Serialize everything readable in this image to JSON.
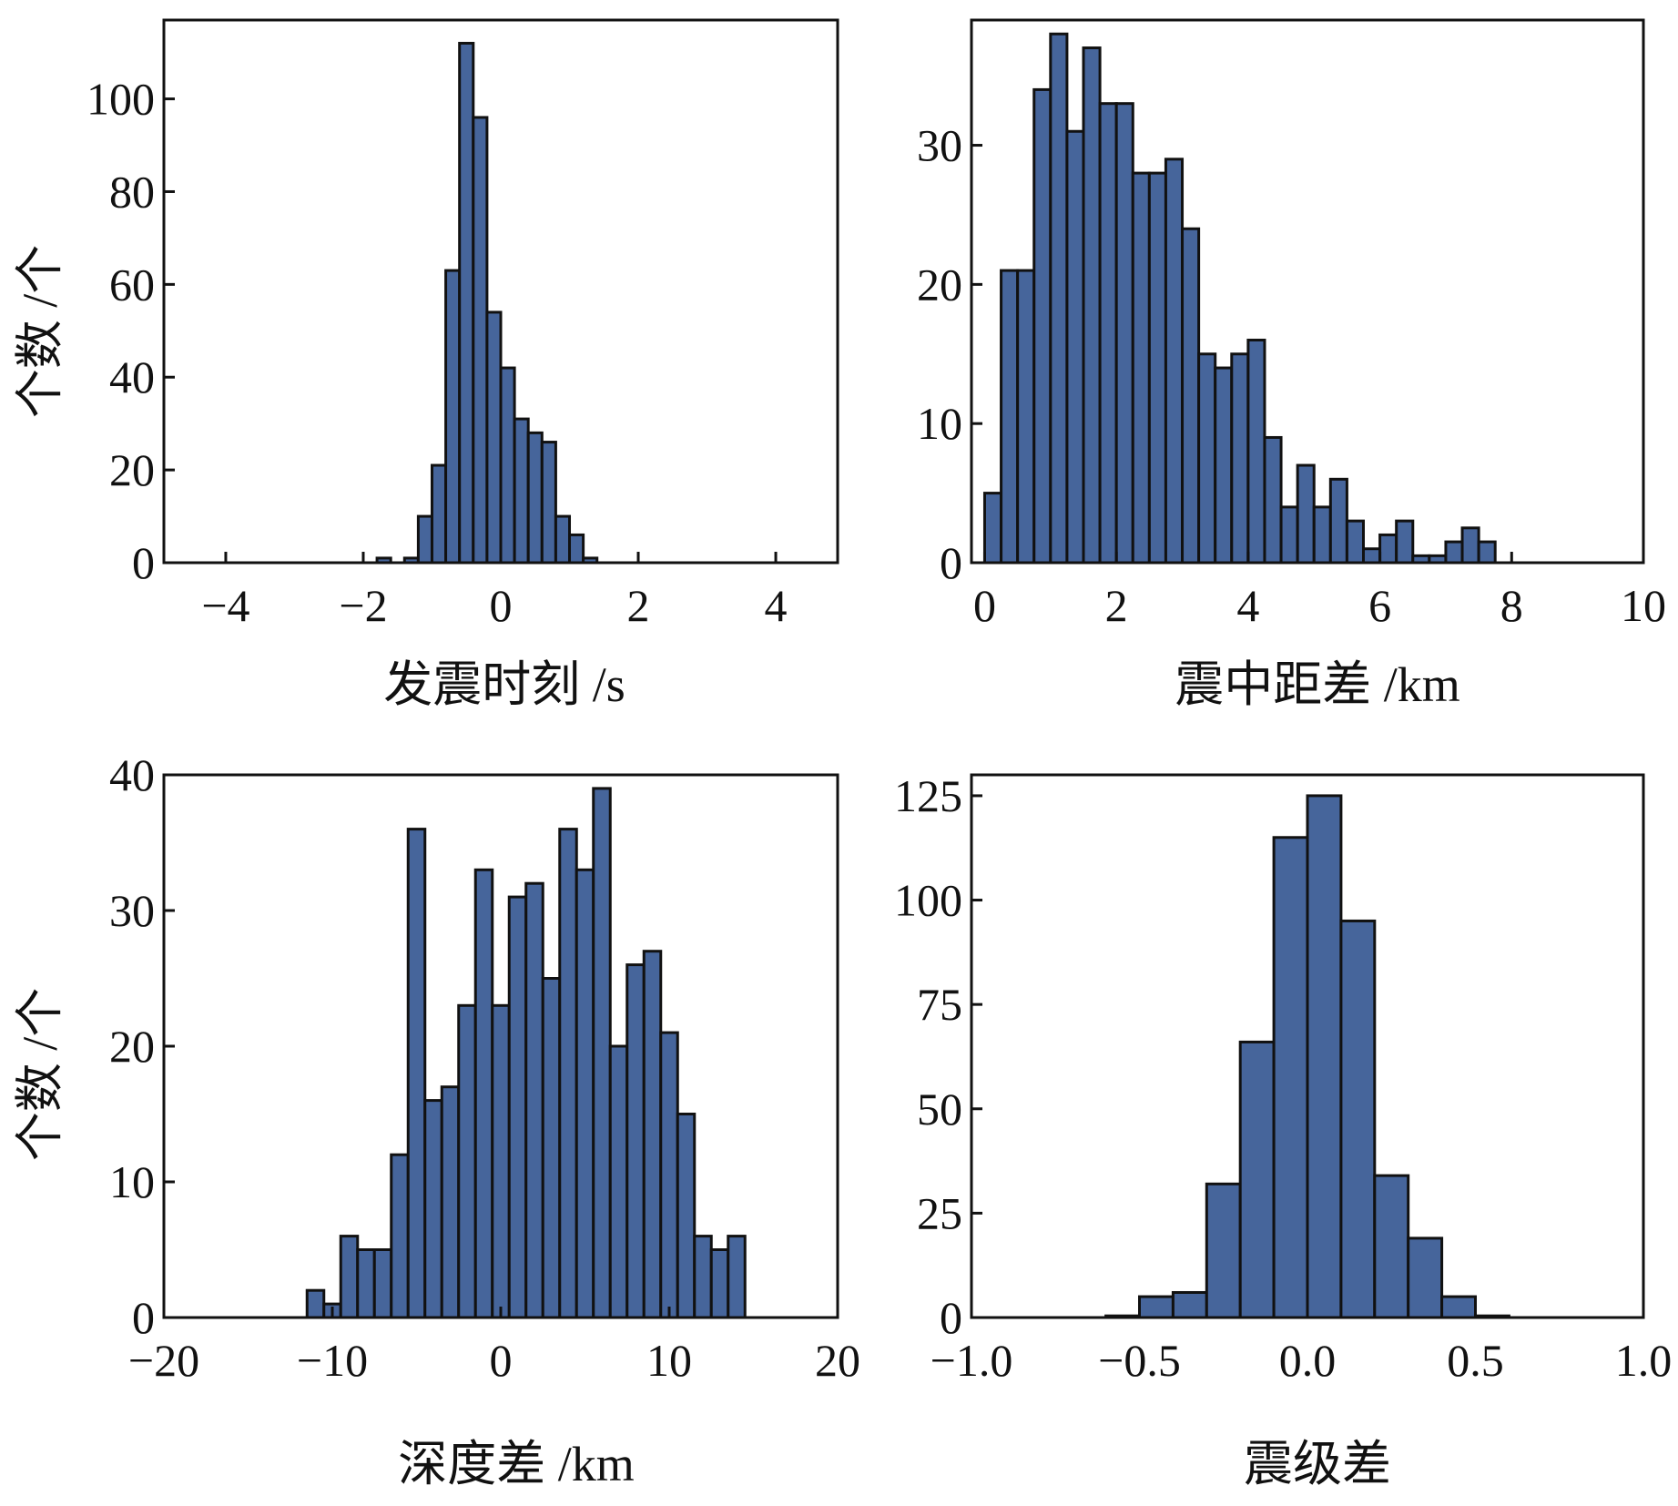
{
  "colors": {
    "bar_fill": "#46659b",
    "bar_stroke": "#111111",
    "axis": "#111111"
  },
  "chart_data": [
    {
      "id": "origin-time",
      "type": "bar",
      "xlabel": "发震时刻 /s",
      "ylabel": "个数 /个",
      "xlim": [
        -4.9,
        4.9
      ],
      "ylim": [
        0,
        117
      ],
      "xticks": [
        -4,
        -2,
        0,
        2,
        4
      ],
      "xtick_labels": [
        "−4",
        "−2",
        "0",
        "2",
        "4"
      ],
      "yticks": [
        0,
        20,
        40,
        60,
        80,
        100
      ],
      "ytick_labels": [
        "0",
        "20",
        "40",
        "60",
        "80",
        "100"
      ],
      "bin_start": -2.0,
      "bin_width": 0.2,
      "values": [
        0,
        1,
        0,
        1,
        10,
        21,
        63,
        112,
        96,
        54,
        42,
        31,
        28,
        26,
        10,
        6,
        1,
        0,
        0,
        0,
        0,
        0
      ]
    },
    {
      "id": "epicentral-distance-diff",
      "type": "bar",
      "xlabel": "震中距差 /km",
      "ylabel": "",
      "xlim": [
        -0.2,
        10
      ],
      "ylim": [
        0,
        39
      ],
      "xticks": [
        0,
        2,
        4,
        6,
        8,
        10
      ],
      "xtick_labels": [
        "0",
        "2",
        "4",
        "6",
        "8",
        "10"
      ],
      "yticks": [
        0,
        10,
        20,
        30
      ],
      "ytick_labels": [
        "0",
        "10",
        "20",
        "30"
      ],
      "bin_start": 0.0,
      "bin_width": 0.25,
      "values": [
        5,
        21,
        21,
        34,
        38,
        31,
        37,
        33,
        33,
        28,
        28,
        29,
        24,
        15,
        14,
        15,
        16,
        9,
        4,
        7,
        4,
        6,
        3,
        1,
        2,
        3,
        0.5,
        0.5,
        1.5,
        2.5,
        1.5
      ]
    },
    {
      "id": "depth-diff",
      "type": "bar",
      "xlabel": "深度差 /km",
      "ylabel": "个数 /个",
      "xlim": [
        -20,
        20
      ],
      "ylim": [
        0,
        40
      ],
      "xticks": [
        -20,
        -10,
        0,
        10,
        20
      ],
      "xtick_labels": [
        "−20",
        "−10",
        "0",
        "10",
        "20"
      ],
      "yticks": [
        0,
        10,
        20,
        30,
        40
      ],
      "ytick_labels": [
        "0",
        "10",
        "20",
        "30",
        "40"
      ],
      "bin_start": -11.5,
      "bin_width": 1.0,
      "values": [
        2,
        1,
        6,
        5,
        5,
        12,
        36,
        16,
        17,
        23,
        33,
        23,
        31,
        32,
        25,
        36,
        33,
        39,
        20,
        26,
        27,
        21,
        15,
        6,
        5,
        6
      ]
    },
    {
      "id": "magnitude-diff",
      "type": "bar",
      "xlabel": "震级差",
      "ylabel": "",
      "xlim": [
        -1.0,
        1.0
      ],
      "ylim": [
        0,
        130
      ],
      "xticks": [
        -1.0,
        -0.5,
        0.0,
        0.5,
        1.0
      ],
      "xtick_labels": [
        "−1.0",
        "−0.5",
        "0.0",
        "0.5",
        "1.0"
      ],
      "yticks": [
        0,
        25,
        50,
        75,
        100,
        125
      ],
      "ytick_labels": [
        "0",
        "25",
        "50",
        "75",
        "100",
        "125"
      ],
      "bin_start": -0.6,
      "bin_width": 0.1,
      "values": [
        0.4,
        5,
        6,
        32,
        66,
        115,
        125,
        95,
        34,
        19,
        5,
        0.4
      ]
    }
  ]
}
